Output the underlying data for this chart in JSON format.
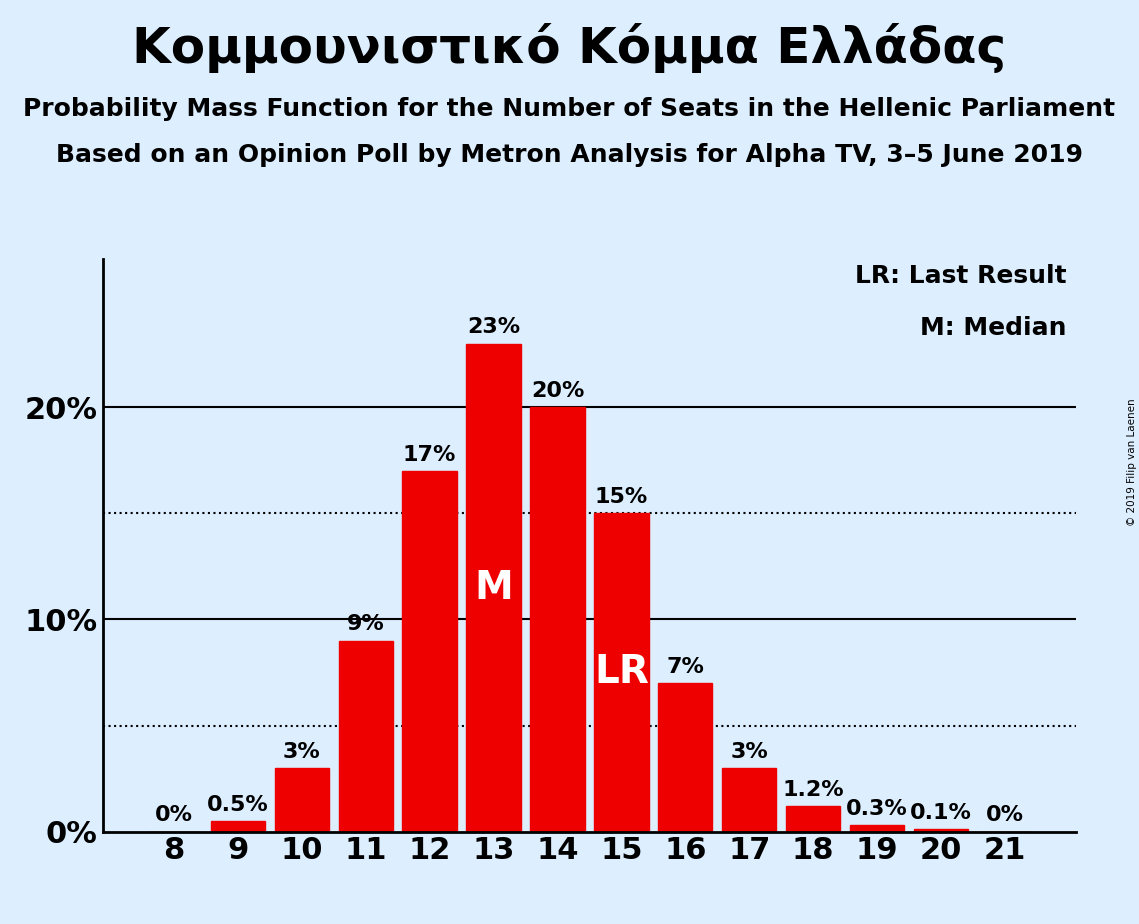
{
  "title": "Κομμουνιστικό Κόμμα Ελλάδας",
  "subtitle1": "Probability Mass Function for the Number of Seats in the Hellenic Parliament",
  "subtitle2": "Based on an Opinion Poll by Metron Analysis for Alpha TV, 3–5 June 2019",
  "copyright": "© 2019 Filip van Laenen",
  "categories": [
    8,
    9,
    10,
    11,
    12,
    13,
    14,
    15,
    16,
    17,
    18,
    19,
    20,
    21
  ],
  "values": [
    0.0,
    0.5,
    3.0,
    9.0,
    17.0,
    23.0,
    20.0,
    15.0,
    7.0,
    3.0,
    1.2,
    0.3,
    0.1,
    0.0
  ],
  "labels": [
    "0%",
    "0.5%",
    "3%",
    "9%",
    "17%",
    "23%",
    "20%",
    "15%",
    "7%",
    "3%",
    "1.2%",
    "0.3%",
    "0.1%",
    "0%"
  ],
  "bar_color": "#ee0000",
  "background_color": "#ddeeff",
  "median_bar": 13,
  "lr_bar": 15,
  "legend_lr": "LR: Last Result",
  "legend_m": "M: Median",
  "yticks": [
    0,
    10,
    20
  ],
  "solid_lines": [
    10,
    20
  ],
  "dotted_lines": [
    5,
    15
  ],
  "ylim": [
    0,
    27
  ],
  "ylabel_fontsize": 22,
  "xlabel_fontsize": 22,
  "title_fontsize": 36,
  "subtitle_fontsize": 18,
  "bar_label_fontsize": 16,
  "annotation_fontsize": 28,
  "legend_fontsize": 18
}
